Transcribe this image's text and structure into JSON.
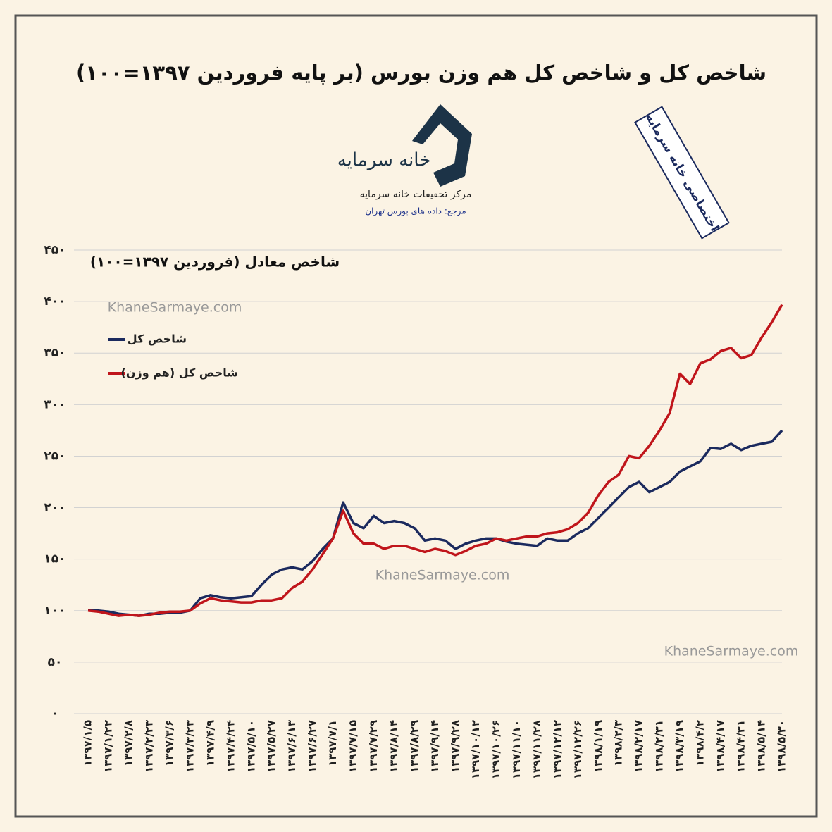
{
  "chart_data": {
    "type": "line",
    "title": "شاخص کل و شاخص کل هم وزن بورس (بر پایه فروردین ۱۳۹۷=۱۰۰)",
    "y_label": "شاخص معادل (فروردین ۱۳۹۷=۱۰۰)",
    "categories": [
      "۱۳۹۷/۱/۵",
      null,
      "۱۳۹۷/۱/۲۲",
      null,
      "۱۳۹۷/۲/۸",
      null,
      "۱۳۹۷/۲/۲۳",
      null,
      "۱۳۹۷/۳/۶",
      null,
      "۱۳۹۷/۳/۲۳",
      null,
      "۱۳۹۷/۴/۹",
      null,
      "۱۳۹۷/۴/۲۴",
      null,
      "۱۳۹۷/۵/۱۰",
      null,
      "۱۳۹۷/۵/۲۷",
      null,
      "۱۳۹۷/۶/۱۳",
      null,
      "۱۳۹۷/۶/۲۷",
      null,
      "۱۳۹۷/۷/۱",
      null,
      "۱۳۹۷/۷/۱۵",
      null,
      "۱۳۹۷/۷/۲۹",
      null,
      "۱۳۹۷/۸/۱۴",
      null,
      "۱۳۹۷/۸/۲۹",
      null,
      "۱۳۹۷/۹/۱۴",
      null,
      "۱۳۹۷/۹/۲۸",
      null,
      "۱۳۹۷/۱۰/۱۲",
      null,
      "۱۳۹۷/۱۰/۲۶",
      null,
      "۱۳۹۷/۱۱/۱۰",
      null,
      "۱۳۹۷/۱۱/۲۸",
      null,
      "۱۳۹۷/۱۲/۱۲",
      null,
      "۱۳۹۷/۱۲/۲۶",
      null,
      "۱۳۹۸/۱/۱۹",
      null,
      "۱۳۹۸/۲/۳",
      null,
      "۱۳۹۸/۲/۱۷",
      null,
      "۱۳۹۸/۲/۳۱",
      null,
      "۱۳۹۸/۳/۱۹",
      null,
      "۱۳۹۸/۴/۲",
      null,
      "۱۳۹۸/۴/۱۷",
      null,
      "۱۳۹۸/۴/۳۱",
      null,
      "۱۳۹۸/۵/۱۴",
      null,
      "۱۳۹۸/۵/۳۰"
    ],
    "series": [
      {
        "name": "شاخص کل",
        "color": "#1b2a5e",
        "values": [
          100,
          100,
          99,
          97,
          96,
          95,
          97,
          97,
          98,
          98,
          100,
          112,
          115,
          113,
          112,
          113,
          114,
          125,
          135,
          140,
          142,
          140,
          148,
          160,
          170,
          205,
          185,
          180,
          192,
          185,
          187,
          185,
          180,
          168,
          170,
          168,
          160,
          165,
          168,
          170,
          170,
          167,
          165,
          164,
          163,
          170,
          168,
          168,
          175,
          180,
          190,
          200,
          210,
          220,
          225,
          215,
          220,
          225,
          235,
          240,
          245,
          258,
          257,
          262,
          256,
          260,
          262,
          264,
          275
        ]
      },
      {
        "name": "شاخص کل (هم وزن)",
        "color": "#c0151b",
        "values": [
          100,
          99,
          97,
          95,
          96,
          95,
          96,
          98,
          99,
          99,
          100,
          107,
          112,
          110,
          109,
          108,
          108,
          110,
          110,
          112,
          122,
          128,
          140,
          155,
          170,
          197,
          175,
          165,
          165,
          160,
          163,
          163,
          160,
          157,
          160,
          158,
          154,
          158,
          163,
          165,
          170,
          168,
          170,
          172,
          172,
          175,
          176,
          179,
          185,
          195,
          212,
          225,
          232,
          250,
          248,
          260,
          275,
          292,
          330,
          320,
          340,
          344,
          352,
          355,
          345,
          348,
          365,
          380,
          397
        ]
      }
    ],
    "ylim": [
      0,
      450
    ],
    "yticks": [
      {
        "value": 0,
        "label": "۰"
      },
      {
        "value": 50,
        "label": "۵۰"
      },
      {
        "value": 100,
        "label": "۱۰۰"
      },
      {
        "value": 150,
        "label": "۱۵۰"
      },
      {
        "value": 200,
        "label": "۲۰۰"
      },
      {
        "value": 250,
        "label": "۲۵۰"
      },
      {
        "value": 300,
        "label": "۳۰۰"
      },
      {
        "value": 350,
        "label": "۳۵۰"
      },
      {
        "value": 400,
        "label": "۴۰۰"
      },
      {
        "value": 450,
        "label": "۴۵۰"
      }
    ],
    "grid": true
  },
  "logo": {
    "name": "خانه سرمایه",
    "org": "مرکز تحقیقات خانه سرمایه",
    "source": "مرجع: داده های بورس تهران"
  },
  "stamp": "اختصاصی خانه سرمایه",
  "watermarks": [
    "KhaneSarmaye.com",
    "KhaneSarmaye.com",
    "KhaneSarmaye.com"
  ]
}
